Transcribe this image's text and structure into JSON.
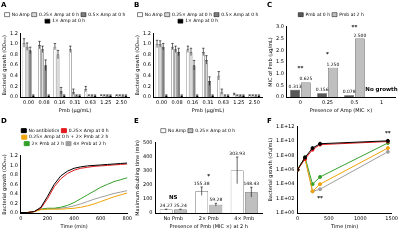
{
  "chart_data": [
    {
      "type": "bar",
      "title": "A",
      "xlabel": "Pmb (µg/mL)",
      "ylabel": "Bacterial growth (OD₆₀₀)",
      "categories": [
        "0.00",
        "0.08",
        "0.16",
        "0.31",
        "0.63",
        "1.25",
        "2.50"
      ],
      "ylim": [
        0,
        1.2
      ],
      "yticks": [
        {
          "value": 0,
          "label": "0.0"
        },
        0.2,
        0.4,
        0.6,
        0.8,
        {
          "value": 1,
          "label": "1.0"
        },
        1.2
      ],
      "grid": false,
      "legend": "top",
      "series": [
        {
          "name": "No Amp",
          "color": "#ffffff",
          "values": [
            1.02,
            0.98,
            0.95,
            0.9,
            0.15,
            0.03,
            0.03
          ],
          "errors": [
            0.08,
            0.07,
            0.06,
            0.06,
            0.05,
            0.01,
            0.01
          ]
        },
        {
          "name": "0.25× Amp at 0 h",
          "color": "#d9d9d9",
          "values": [
            0.95,
            0.9,
            0.8,
            0.1,
            0.03,
            0.03,
            0.03
          ],
          "errors": [
            0.07,
            0.06,
            0.08,
            0.05,
            0.01,
            0.01,
            0.01
          ]
        },
        {
          "name": "0.5× Amp at 0 h",
          "color": "#808080",
          "values": [
            0.88,
            0.6,
            0.12,
            0.03,
            0.03,
            0.03,
            0.03
          ],
          "errors": [
            0.06,
            0.1,
            0.06,
            0.01,
            0.01,
            0.01,
            0.01
          ]
        },
        {
          "name": "1× Amp at 0 h",
          "color": "#000000",
          "values": [
            0.03,
            0.03,
            0.03,
            0.03,
            0.03,
            0.03,
            0.03
          ],
          "errors": [
            0.01,
            0.01,
            0.01,
            0.01,
            0.01,
            0.01,
            0.01
          ]
        }
      ]
    },
    {
      "type": "bar",
      "title": "B",
      "xlabel": "Pmb (µg/mL)",
      "ylabel": "Bacterial growth (OD₆₀₀)",
      "categories": [
        "0.00",
        "0.08",
        "0.16",
        "0.31",
        "0.63",
        "1.25",
        "2.50"
      ],
      "ylim": [
        0,
        1.2
      ],
      "yticks": [
        {
          "value": 0,
          "label": "0.0"
        },
        0.2,
        0.4,
        0.6,
        0.8,
        {
          "value": 1,
          "label": "1.0"
        },
        1.2
      ],
      "grid": false,
      "legend": "top",
      "series": [
        {
          "name": "No Amp",
          "color": "#ffffff",
          "values": [
            1.0,
            0.95,
            0.9,
            0.85,
            0.4,
            0.05,
            0.03
          ],
          "errors": [
            0.07,
            0.06,
            0.06,
            0.07,
            0.08,
            0.02,
            0.01
          ]
        },
        {
          "name": "0.25× Amp at 0 h",
          "color": "#d9d9d9",
          "values": [
            1.0,
            0.9,
            0.85,
            0.7,
            0.1,
            0.03,
            0.03
          ],
          "errors": [
            0.06,
            0.06,
            0.07,
            0.08,
            0.05,
            0.01,
            0.01
          ]
        },
        {
          "name": "0.5× Amp at 0 h",
          "color": "#808080",
          "values": [
            0.95,
            0.85,
            0.6,
            0.3,
            0.03,
            0.03,
            0.03
          ],
          "errors": [
            0.06,
            0.07,
            0.09,
            0.08,
            0.01,
            0.01,
            0.01
          ]
        },
        {
          "name": "1× Amp at 0 h",
          "color": "#000000",
          "values": [
            0.03,
            0.03,
            0.03,
            0.03,
            0.03,
            0.03,
            0.03
          ],
          "errors": [
            0.01,
            0.01,
            0.01,
            0.01,
            0.01,
            0.01,
            0.01
          ]
        }
      ]
    },
    {
      "type": "bar",
      "title": "C",
      "xlabel": "Presence of Amp (MIC ×)",
      "ylabel": "MIC of Pmb (µg/mL)",
      "categories": [
        "0",
        "0.25",
        "0.5",
        "1"
      ],
      "ylim": [
        0,
        3
      ],
      "yticks": [
        {
          "value": 0,
          "label": "0.0"
        },
        0.5,
        {
          "value": 1,
          "label": "1.0"
        },
        1.5,
        {
          "value": 2,
          "label": "2.0"
        },
        2.5,
        {
          "value": 3,
          "label": "3.0"
        }
      ],
      "grid": false,
      "legend": "top",
      "data_labels": true,
      "series": [
        {
          "name": "Pmb at 0 h",
          "color": "#595959",
          "values": [
            0.313,
            0.156,
            0.078,
            null
          ],
          "value_labels": [
            "0.313",
            "0.156",
            "0.078",
            null
          ]
        },
        {
          "name": "Pmb at 2 h",
          "color": "#bfbfbf",
          "values": [
            0.625,
            1.25,
            2.5,
            null
          ],
          "value_labels": [
            "0.625",
            "1.250",
            "2.500",
            null
          ]
        }
      ],
      "annotations": [
        {
          "text": "**",
          "x": 0,
          "y": 1.2
        },
        {
          "text": "*",
          "x": 1,
          "y": 1.8
        },
        {
          "text": "**",
          "x": 2,
          "y": 2.95
        },
        {
          "text": "No growth",
          "x": 3,
          "y": 0.3
        }
      ]
    },
    {
      "type": "line",
      "title": "D",
      "xlabel": "Time (min)",
      "ylabel": "Bacterial growth (OD₆₀₀)",
      "x": [
        0,
        50,
        100,
        150,
        200,
        250,
        300,
        350,
        400,
        450,
        500,
        550,
        600,
        650,
        700,
        750,
        800
      ],
      "xlim": [
        0,
        800
      ],
      "xticks": [
        0,
        200,
        400,
        600,
        800
      ],
      "ylim": [
        0,
        1.2
      ],
      "yticks": [
        {
          "value": 0,
          "label": "0.0"
        },
        0.2,
        0.4,
        0.6,
        0.8,
        {
          "value": 1,
          "label": "1.0"
        },
        1.2
      ],
      "grid": false,
      "legend": "top",
      "series": [
        {
          "name": "No antibiotics",
          "color": "#000000",
          "values": [
            0.01,
            0.01,
            0.03,
            0.12,
            0.35,
            0.6,
            0.78,
            0.88,
            0.94,
            0.97,
            0.99,
            1.0,
            1.01,
            1.02,
            1.03,
            1.04,
            1.05
          ]
        },
        {
          "name": "0.25× Amp at 0 h",
          "color": "#e31a1c",
          "values": [
            0.01,
            0.01,
            0.03,
            0.1,
            0.3,
            0.55,
            0.72,
            0.83,
            0.9,
            0.94,
            0.96,
            0.98,
            0.99,
            1.0,
            1.01,
            1.02,
            1.03
          ]
        },
        {
          "name": "0.25× Amp at 0 h + 2× Pmb at 2 h",
          "color": "#f0a30a",
          "values": [
            0.01,
            0.01,
            0.03,
            0.07,
            0.08,
            0.08,
            0.08,
            0.09,
            0.1,
            0.12,
            0.15,
            0.19,
            0.24,
            0.29,
            0.34,
            0.38,
            0.42
          ]
        },
        {
          "name": "2× Pmb at 2 h",
          "color": "#33a02c",
          "values": [
            0.01,
            0.01,
            0.03,
            0.08,
            0.1,
            0.1,
            0.12,
            0.16,
            0.22,
            0.3,
            0.38,
            0.46,
            0.54,
            0.6,
            0.66,
            0.7,
            0.74
          ]
        },
        {
          "name": "4× Pmb at 2 h",
          "color": "#9e9e9e",
          "values": [
            0.01,
            0.01,
            0.03,
            0.08,
            0.09,
            0.09,
            0.1,
            0.12,
            0.15,
            0.19,
            0.24,
            0.29,
            0.33,
            0.37,
            0.41,
            0.44,
            0.47
          ]
        }
      ]
    },
    {
      "type": "bar",
      "title": "E",
      "xlabel": "Presence of Pmb (MIC ×) at 2 h",
      "ylabel": "Maximum doubling time (min)",
      "categories": [
        "No Pmb",
        "2× Pmb",
        "4× Pmb"
      ],
      "ylim": [
        0,
        500
      ],
      "yticks": [
        0,
        100,
        200,
        300,
        400,
        500
      ],
      "grid": false,
      "legend": "top",
      "data_labels": true,
      "series": [
        {
          "name": "No Amp",
          "color": "#ffffff",
          "values": [
            24.27,
            155.38,
            303.93
          ],
          "errors": [
            3,
            30,
            95
          ]
        },
        {
          "name": "0.25× Amp at 0 h",
          "color": "#bfbfbf",
          "values": [
            25.24,
            59.28,
            148.43
          ],
          "errors": [
            2,
            10,
            35
          ]
        }
      ],
      "annotations": [
        {
          "text": "NS",
          "x": 0,
          "y": 110
        },
        {
          "text": "*",
          "x": 1,
          "y": 260
        }
      ]
    },
    {
      "type": "line",
      "title": "F",
      "xlabel": "Time (min)",
      "ylabel": "Bacterial growth (cfu/mL)",
      "log": "y",
      "x": [
        0,
        120,
        240,
        360,
        1440
      ],
      "xlim": [
        0,
        1500
      ],
      "xticks": [
        0,
        500,
        1000,
        1500
      ],
      "ylim": [
        1,
        1000000000000
      ],
      "yticks": [
        {
          "value": 1,
          "label": "1.E+00"
        },
        {
          "value": 100,
          "label": "1.E+02"
        },
        {
          "value": 10000,
          "label": "1.E+04"
        },
        {
          "value": 1000000,
          "label": "1.E+06"
        },
        {
          "value": 100000000,
          "label": "1.E+08"
        },
        {
          "value": 10000000000,
          "label": "1.E+10"
        },
        {
          "value": 1000000000000,
          "label": "1.E+12"
        }
      ],
      "grid": false,
      "series": [
        {
          "name": "No antibiotics",
          "color": "#000000",
          "marker": "circle",
          "values": [
            1000000,
            50000000,
            1000000000,
            4000000000,
            10000000000
          ]
        },
        {
          "name": "0.25× Amp at 0 h",
          "color": "#e31a1c",
          "marker": "circle",
          "values": [
            1000000,
            30000000,
            600000000,
            3000000000,
            8000000000
          ]
        },
        {
          "name": "0.25× Amp at 0 h + 2× Pmb at 2 h",
          "color": "#f0a30a",
          "marker": "circle",
          "values": [
            1000000,
            30000000,
            1000,
            10000,
            1000000000
          ]
        },
        {
          "name": "2× Pmb at 2 h",
          "color": "#33a02c",
          "marker": "circle",
          "values": [
            1000000,
            50000000,
            10000,
            100000,
            5000000000
          ]
        },
        {
          "name": "4× Pmb at 2 h",
          "color": "#9e9e9e",
          "marker": "circle",
          "values": [
            1000000,
            50000000,
            1000,
            2000,
            300000000
          ]
        }
      ],
      "annotations": [
        {
          "text": "**",
          "x": 360,
          "y": 100
        },
        {
          "text": "**",
          "x": 1440,
          "y": 100000000000
        }
      ]
    }
  ]
}
